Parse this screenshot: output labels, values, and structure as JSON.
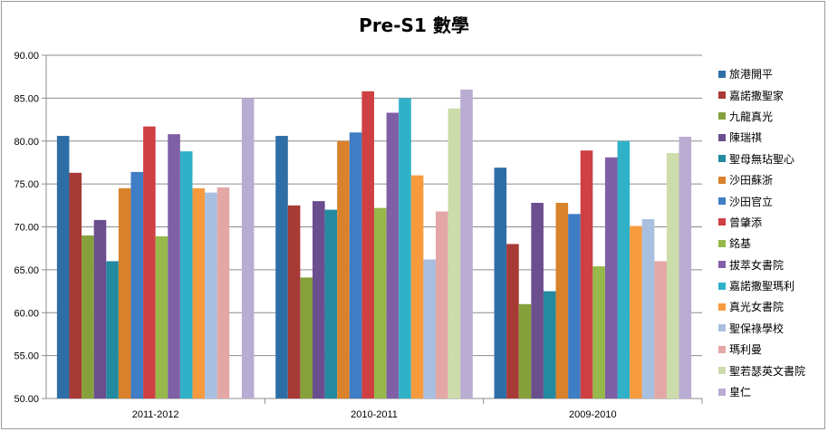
{
  "chart_data": {
    "type": "bar",
    "title": "Pre-S1 數學",
    "xlabel": "",
    "ylabel": "",
    "ylim": [
      50,
      90
    ],
    "yticks": [
      "50.00",
      "55.00",
      "60.00",
      "65.00",
      "70.00",
      "75.00",
      "80.00",
      "85.00",
      "90.00"
    ],
    "grid": true,
    "legend": "right",
    "categories": [
      "2011-2012",
      "2010-2011",
      "2009-2010"
    ],
    "series": [
      {
        "name": "旅港開平",
        "color": "#2e6ea6",
        "values": [
          80.6,
          80.6,
          76.9
        ]
      },
      {
        "name": "嘉諾撒聖家",
        "color": "#a83a36",
        "values": [
          76.3,
          72.5,
          68.0
        ]
      },
      {
        "name": "九龍真光",
        "color": "#86a13c",
        "values": [
          69.0,
          64.1,
          61.0
        ]
      },
      {
        "name": "陳瑞祺",
        "color": "#6b4e8e",
        "values": [
          70.8,
          73.0,
          72.8
        ]
      },
      {
        "name": "聖母無玷聖心",
        "color": "#248aa0",
        "values": [
          66.0,
          72.0,
          62.5
        ]
      },
      {
        "name": "沙田蘇浙",
        "color": "#d9822b",
        "values": [
          74.5,
          80.0,
          72.8
        ]
      },
      {
        "name": "沙田官立",
        "color": "#3f7dc4",
        "values": [
          76.4,
          81.0,
          71.5
        ]
      },
      {
        "name": "曾肇添",
        "color": "#cf4043",
        "values": [
          81.7,
          85.8,
          78.9
        ]
      },
      {
        "name": "銘基",
        "color": "#97b84a",
        "values": [
          68.9,
          72.2,
          65.4
        ]
      },
      {
        "name": "拔萃女書院",
        "color": "#7f5fa6",
        "values": [
          80.8,
          83.3,
          78.1
        ]
      },
      {
        "name": "嘉諾撒聖瑪利",
        "color": "#2fb2c8",
        "values": [
          78.8,
          85.0,
          80.0
        ]
      },
      {
        "name": "真光女書院",
        "color": "#f79a3e",
        "values": [
          74.5,
          76.0,
          70.1
        ]
      },
      {
        "name": "聖保祿學校",
        "color": "#a9bfe0",
        "values": [
          74.0,
          66.2,
          70.9
        ]
      },
      {
        "name": "瑪利曼",
        "color": "#e3a8a6",
        "values": [
          74.6,
          71.8,
          66.0
        ]
      },
      {
        "name": "聖若瑟英文書院",
        "color": "#ccdcaa",
        "values": [
          null,
          83.8,
          78.6
        ]
      },
      {
        "name": "皇仁",
        "color": "#b9acd3",
        "values": [
          85.0,
          86.0,
          80.5
        ]
      }
    ]
  }
}
